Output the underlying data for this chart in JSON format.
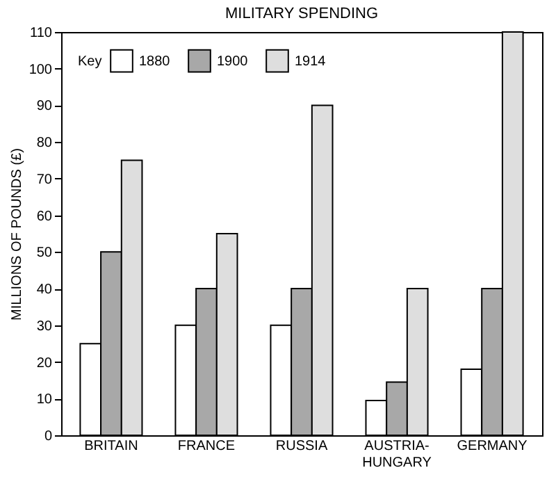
{
  "chart_data": {
    "type": "bar",
    "title": "MILITARY SPENDING",
    "ylabel": "MILLIONS OF POUNDS (£)",
    "legend_title": "Key",
    "legend": "top left",
    "grid": false,
    "categories": [
      "BRITAIN",
      "FRANCE",
      "RUSSIA",
      "AUSTRIA-HUNGARY",
      "GERMANY"
    ],
    "ylim": [
      0,
      110
    ],
    "yticks": [
      0,
      10,
      20,
      30,
      40,
      50,
      60,
      70,
      80,
      90,
      100,
      110
    ],
    "series": [
      {
        "name": "1880",
        "color": "#ffffff",
        "values": [
          25,
          30,
          30,
          9.5,
          18
        ]
      },
      {
        "name": "1900",
        "color": "#a8a8a8",
        "values": [
          50,
          40,
          40,
          14.5,
          40
        ]
      },
      {
        "name": "1914",
        "color": "#dedede",
        "values": [
          75,
          55,
          90,
          40,
          110
        ]
      }
    ]
  }
}
